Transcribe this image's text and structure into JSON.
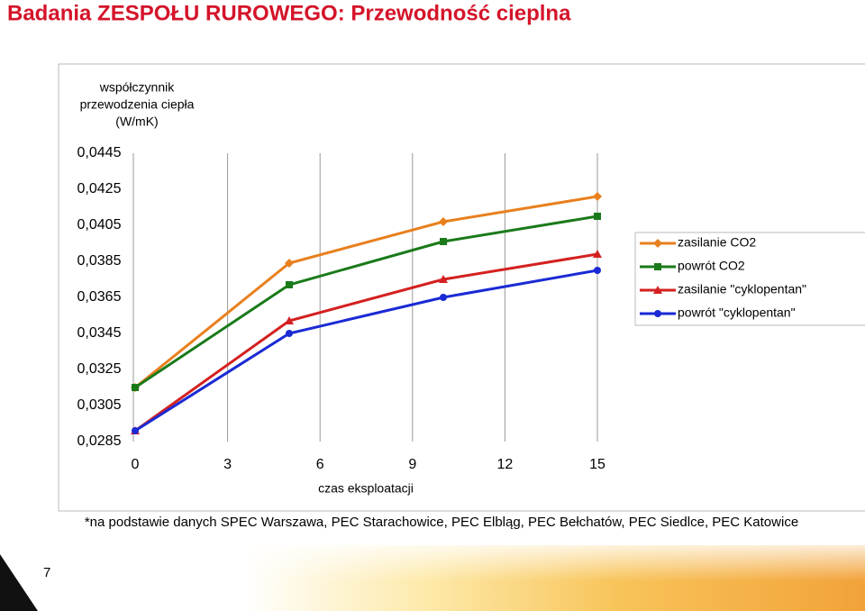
{
  "title": "Badania ZESPOŁU RUROWEGO: Przewodność cieplna",
  "footnote": "*na podstawie danych SPEC Warszawa, PEC Starachowice, PEC Elbląg, PEC Bełchatów, PEC Siedlce, PEC Katowice",
  "page_number": "7",
  "chart_data": {
    "type": "line",
    "y_label": [
      "współczynnik",
      "przewodzenia ciepła",
      "(W/mK)"
    ],
    "x_label": "czas eksploatacji",
    "x": [
      0,
      5,
      10,
      15
    ],
    "xlim": [
      0,
      15
    ],
    "xticks": [
      0,
      3,
      6,
      9,
      12,
      15
    ],
    "ylim": [
      0.0285,
      0.0445
    ],
    "yticks": [
      {
        "value": 0.0285,
        "label": "0,0285"
      },
      {
        "value": 0.0305,
        "label": "0,0305"
      },
      {
        "value": 0.0325,
        "label": "0,0325"
      },
      {
        "value": 0.0345,
        "label": "0,0345"
      },
      {
        "value": 0.0365,
        "label": "0,0365"
      },
      {
        "value": 0.0385,
        "label": "0,0385"
      },
      {
        "value": 0.0405,
        "label": "0,0405"
      },
      {
        "value": 0.0425,
        "label": "0,0425"
      },
      {
        "value": 0.0445,
        "label": "0,0445"
      }
    ],
    "grid": "x",
    "legend": "right",
    "series": [
      {
        "name": "zasilanie CO2",
        "color": "#e8801e",
        "marker": "diamond",
        "values": [
          0.0315,
          0.0384,
          0.0407,
          0.0421
        ]
      },
      {
        "name": "powrót CO2",
        "color": "#1a7a1a",
        "marker": "square",
        "values": [
          0.0315,
          0.0372,
          0.0396,
          0.041
        ]
      },
      {
        "name": "zasilanie \"cyklopentan\"",
        "color": "#d42020",
        "marker": "triangle",
        "values": [
          0.0291,
          0.0352,
          0.0375,
          0.0389
        ]
      },
      {
        "name": "powrót \"cyklopentan\"",
        "color": "#1a2ad4",
        "marker": "circle",
        "values": [
          0.0291,
          0.0345,
          0.0365,
          0.038
        ]
      }
    ]
  }
}
